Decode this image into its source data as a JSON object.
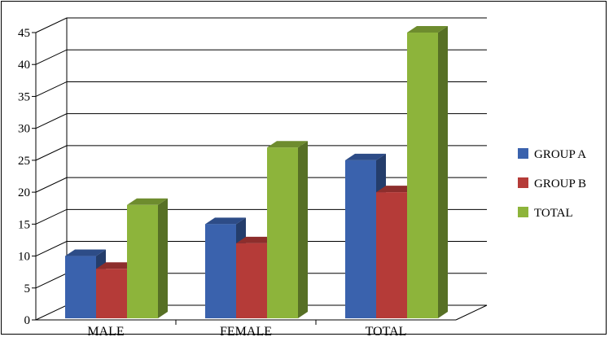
{
  "chart_data": {
    "type": "bar",
    "title": "",
    "xlabel": "",
    "ylabel": "",
    "categories": [
      "MALE",
      "FEMALE",
      "TOTAL"
    ],
    "series": [
      {
        "name": "GROUP A",
        "values": [
          10,
          15,
          25
        ],
        "color": "#3A62AD"
      },
      {
        "name": "GROUP B",
        "values": [
          8,
          12,
          20
        ],
        "color": "#B53B38"
      },
      {
        "name": "TOTAL",
        "values": [
          18,
          27,
          45
        ],
        "color": "#8DB43B"
      }
    ],
    "ylim": [
      0,
      45
    ],
    "yticks": [
      0,
      5,
      10,
      15,
      20,
      25,
      30,
      35,
      40,
      45
    ],
    "grid": true,
    "legend_position": "right",
    "style": "3d-clustered-column"
  }
}
